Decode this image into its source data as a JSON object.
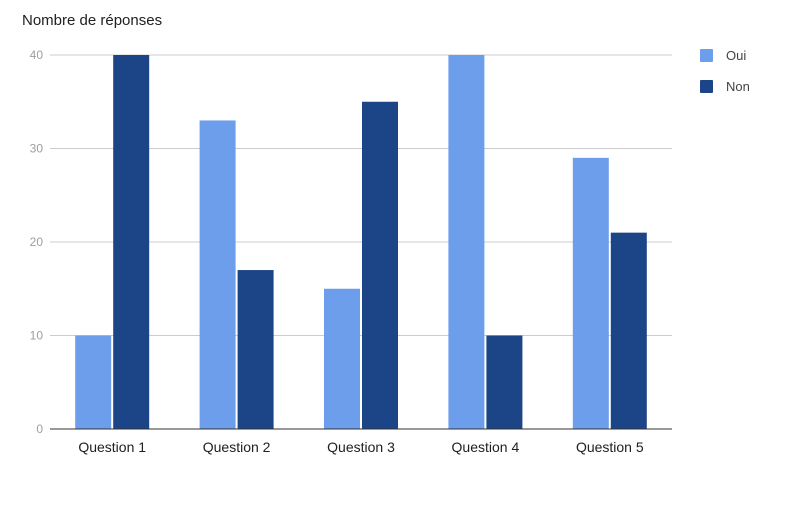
{
  "chart_data": {
    "type": "bar",
    "title": "Nombre de réponses",
    "categories": [
      "Question 1",
      "Question 2",
      "Question 3",
      "Question 4",
      "Question 5"
    ],
    "series": [
      {
        "name": "Oui",
        "values": [
          10,
          33,
          15,
          40,
          29
        ],
        "color": "#6d9eeb"
      },
      {
        "name": "Non",
        "values": [
          40,
          17,
          35,
          10,
          21
        ],
        "color": "#1c4587"
      }
    ],
    "ylim": [
      0,
      40
    ],
    "yticks": [
      0,
      10,
      20,
      30,
      40
    ],
    "grid": true,
    "legend": "right"
  }
}
